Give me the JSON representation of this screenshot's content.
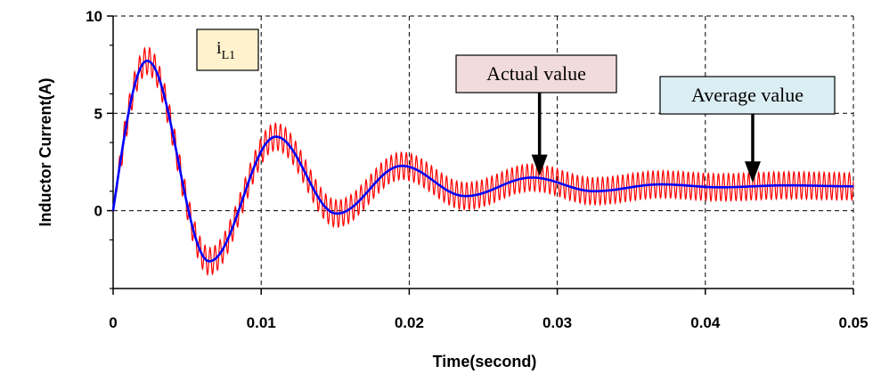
{
  "chart_data": {
    "type": "line",
    "xlabel": "Time(second)",
    "ylabel": "Inductor Current(A)",
    "xlim": [
      0,
      0.05
    ],
    "ylim": [
      -4,
      10
    ],
    "x_ticks": [
      "0",
      "0.01",
      "0.02",
      "0.03",
      "0.04",
      "0.05"
    ],
    "y_ticks": [
      "0",
      "5",
      "10"
    ],
    "grid": "dashed",
    "series": [
      {
        "name": "Actual value",
        "color": "#ff0000",
        "style": "ripple",
        "ripple_amplitude_A": 0.7,
        "x": [
          0,
          0.0023,
          0.0065,
          0.011,
          0.0151,
          0.0195,
          0.0238,
          0.0283,
          0.0325,
          0.037,
          0.041,
          0.0455,
          0.05
        ],
        "values": [
          0,
          7.7,
          -2.6,
          3.8,
          -0.15,
          2.3,
          0.75,
          1.7,
          1.0,
          1.35,
          1.2,
          1.3,
          1.25
        ]
      },
      {
        "name": "Average value",
        "color": "#0000ff",
        "style": "smooth",
        "x": [
          0,
          0.0023,
          0.0065,
          0.011,
          0.0151,
          0.0195,
          0.0238,
          0.0283,
          0.0325,
          0.037,
          0.041,
          0.0455,
          0.05
        ],
        "values": [
          0,
          7.7,
          -2.6,
          3.8,
          -0.15,
          2.3,
          0.75,
          1.7,
          1.0,
          1.35,
          1.2,
          1.3,
          1.25
        ]
      }
    ],
    "annotations": {
      "label_box": {
        "main": "i",
        "sub": "L1",
        "fill": "#fff2cc"
      },
      "actual": {
        "text": "Actual value",
        "fill": "#f2dcdb",
        "x": 0.0288,
        "y": 1.6
      },
      "average": {
        "text": "Average value",
        "fill": "#dbeef3",
        "x": 0.0432,
        "y": 1.25
      }
    }
  }
}
